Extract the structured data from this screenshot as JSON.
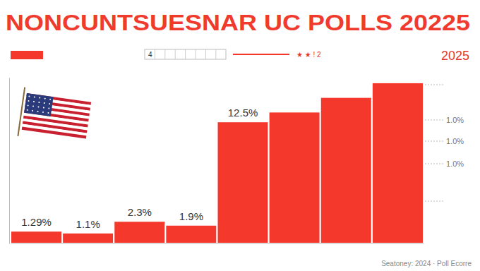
{
  "chart_data": {
    "type": "bar",
    "title": "NONCUNTSUESNAR UC POLLS 20225",
    "categories": [
      null,
      null,
      null,
      null,
      null,
      null,
      null,
      null
    ],
    "values": [
      1.29,
      1.1,
      2.3,
      1.9,
      12.5,
      13.5,
      15,
      16.5
    ],
    "value_labels": [
      "1.29%",
      "1.1%",
      "2.3%",
      "1.9%",
      "12.5%",
      null,
      null,
      null
    ],
    "data_labels": true,
    "color": "#f4392c",
    "ylim": [
      0,
      17
    ],
    "yticks": [],
    "tick_labels": false,
    "grid": false,
    "annotations": [
      {
        "text": "4"
      },
      {
        "text": "★ ★ ! 2"
      },
      {
        "text": "2025"
      },
      {
        "text": "1.0%"
      },
      {
        "text": "1.0%"
      },
      {
        "text": "1.0%"
      },
      {
        "text": "Seatoney: 2024 · Poll Ecorre"
      }
    ]
  }
}
